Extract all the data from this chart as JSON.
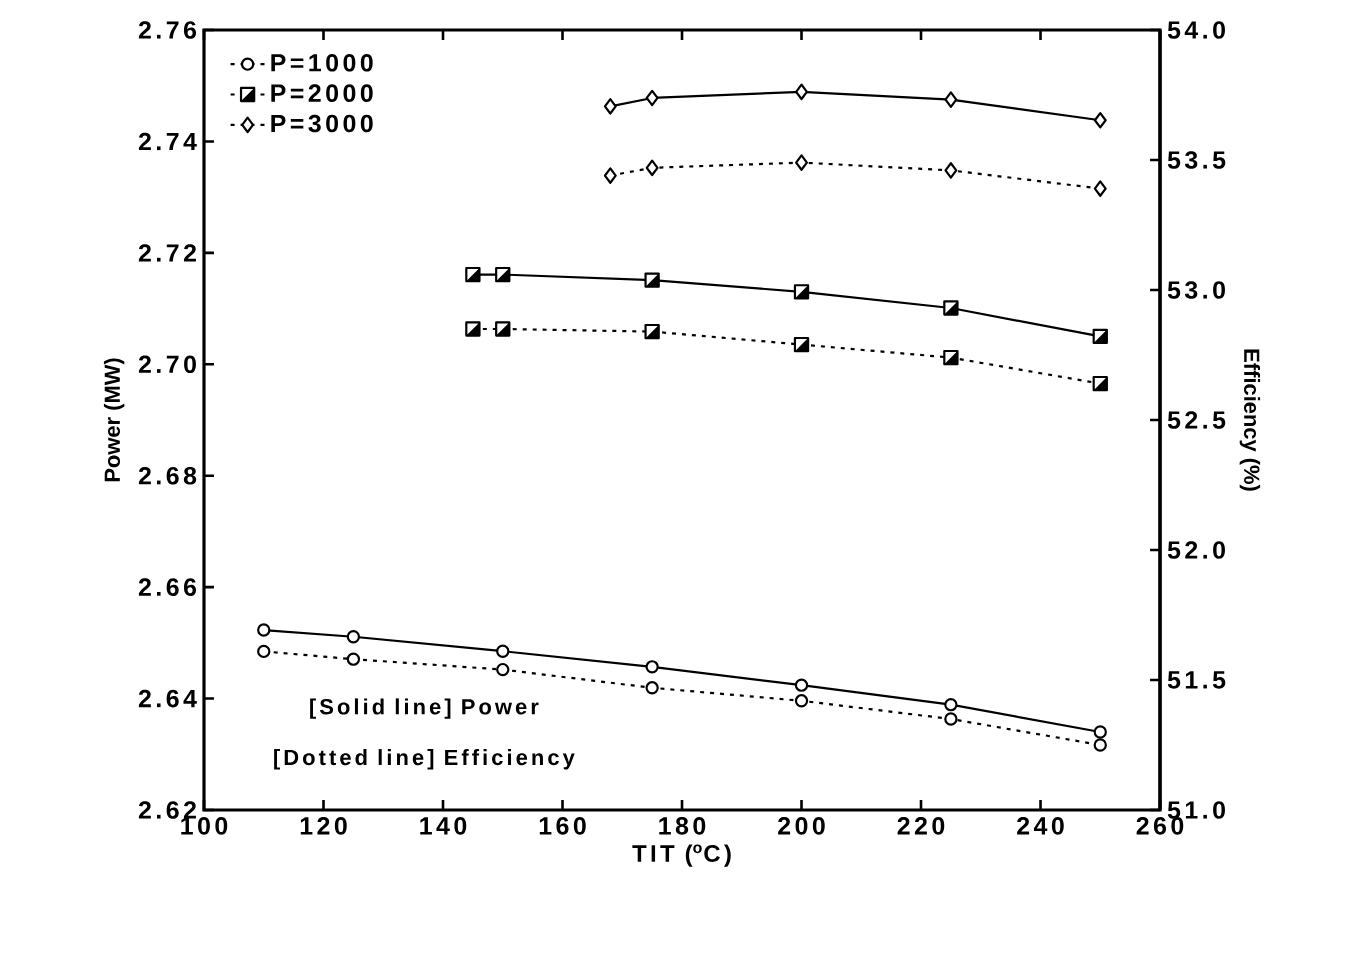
{
  "chart_data": {
    "type": "line",
    "xlabel": "TIT ($^{o}$C)",
    "ylabel": "Power (MW)",
    "y2label": "Efficiency (%)",
    "xlim": [
      100,
      260
    ],
    "xticks": [
      100,
      120,
      140,
      160,
      180,
      200,
      220,
      240,
      260
    ],
    "ylim": [
      2.62,
      2.76
    ],
    "yticks": [
      2.62,
      2.64,
      2.66,
      2.68,
      {
        "value": 2.7,
        "label": "2.70"
      },
      2.72,
      2.74,
      2.76
    ],
    "y2lim": [
      51,
      54
    ],
    "y2ticks": [
      {
        "value": 51,
        "label": "51.0"
      },
      51.5,
      {
        "value": 52,
        "label": "52.0"
      },
      52.5,
      {
        "value": 53,
        "label": "53.0"
      },
      53.5,
      {
        "value": 54,
        "label": "54.0"
      }
    ],
    "legend": "top left",
    "annotations": [
      "[Solid line]  Power",
      "[Dotted line] Efficiency"
    ],
    "series": [
      {
        "name": "P=1000",
        "axis": "y2",
        "line_style": "dotted",
        "marker": "circle",
        "color": "#000000",
        "x": [
          110,
          125,
          150,
          175,
          200,
          225,
          250
        ],
        "values": [
          51.61,
          51.58,
          51.54,
          51.47,
          51.42,
          51.35,
          51.25
        ]
      },
      {
        "name": "P=2000",
        "axis": "y2",
        "line_style": "dotted",
        "marker": "square",
        "color": "#000000",
        "x": [
          145,
          150,
          175,
          200,
          225,
          250
        ],
        "values": [
          52.85,
          52.85,
          52.84,
          52.79,
          52.74,
          52.64
        ]
      },
      {
        "name": "P=3000",
        "axis": "y2",
        "line_style": "dotted",
        "marker": "diamond",
        "color": "#000000",
        "x": [
          168,
          175,
          200,
          225,
          250
        ],
        "values": [
          53.44,
          53.47,
          53.49,
          53.46,
          53.39
        ]
      },
      {
        "axis": "y",
        "line_style": "solid",
        "marker": "circle",
        "color": "#000000",
        "x": [
          110,
          125,
          150,
          175,
          200,
          225,
          250
        ],
        "values": [
          2.6523,
          2.6511,
          2.6485,
          2.6457,
          2.6424,
          2.6389,
          2.634
        ]
      },
      {
        "axis": "y",
        "line_style": "solid",
        "marker": "square",
        "color": "#000000",
        "x": [
          145,
          150,
          175,
          200,
          225,
          250
        ],
        "values": [
          2.7161,
          2.7161,
          2.7151,
          2.713,
          2.7101,
          2.705
        ]
      },
      {
        "axis": "y",
        "line_style": "solid",
        "marker": "diamond",
        "color": "#000000",
        "x": [
          168,
          175,
          200,
          225,
          250
        ],
        "values": [
          2.7463,
          2.7478,
          2.7489,
          2.7475,
          2.7438
        ]
      }
    ]
  }
}
